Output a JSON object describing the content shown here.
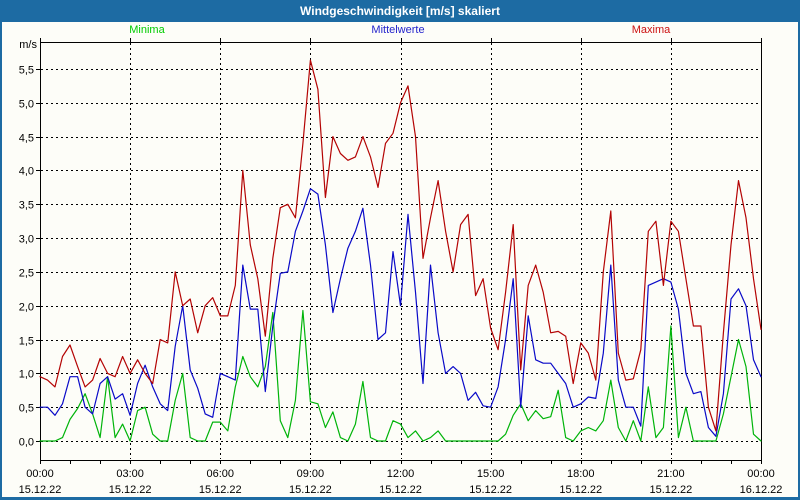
{
  "window": {
    "title": "Windgeschwindigkeit [m/s] skaliert",
    "titlebar_color": "#1d6ba3",
    "frame_color": "#1d6ba3",
    "background": "#fdfdf8"
  },
  "legend": [
    {
      "label": "Minima",
      "color": "#00cc00"
    },
    {
      "label": "Mittelwerte",
      "color": "#2323cc"
    },
    {
      "label": "Maxima",
      "color": "#cc1111"
    }
  ],
  "chart_data": {
    "type": "line",
    "title": "Windgeschwindigkeit [m/s] skaliert",
    "ylabel": "m/s",
    "xlabel": "",
    "ylim": [
      0,
      5.9
    ],
    "grid": "dashed black: horizontal every 0.5 m/s (0.0-5.5), vertical every 3 h",
    "legend_position": "top",
    "x_start": "15.12.22 00:00",
    "x_end": "16.12.22 00:00",
    "sample_step_hours": 0.25,
    "y_ticks": [
      {
        "value": 0.0,
        "label": "0,0"
      },
      {
        "value": 0.5,
        "label": "0,5"
      },
      {
        "value": 1.0,
        "label": "1,0"
      },
      {
        "value": 1.5,
        "label": "1,5"
      },
      {
        "value": 2.0,
        "label": "2,0"
      },
      {
        "value": 2.5,
        "label": "2,5"
      },
      {
        "value": 3.0,
        "label": "3,0"
      },
      {
        "value": 3.5,
        "label": "3,5"
      },
      {
        "value": 4.0,
        "label": "4,0"
      },
      {
        "value": 4.5,
        "label": "4,5"
      },
      {
        "value": 5.0,
        "label": "5,0"
      },
      {
        "value": 5.5,
        "label": "5,5"
      }
    ],
    "x_ticks": [
      {
        "hour": 0,
        "time": "00:00",
        "date": "15.12.22"
      },
      {
        "hour": 3,
        "time": "03:00",
        "date": "15.12.22"
      },
      {
        "hour": 6,
        "time": "06:00",
        "date": "15.12.22"
      },
      {
        "hour": 9,
        "time": "09:00",
        "date": "15.12.22"
      },
      {
        "hour": 12,
        "time": "12:00",
        "date": "15.12.22"
      },
      {
        "hour": 15,
        "time": "15:00",
        "date": "15.12.22"
      },
      {
        "hour": 18,
        "time": "18:00",
        "date": "15.12.22"
      },
      {
        "hour": 21,
        "time": "21:00",
        "date": "15.12.22"
      },
      {
        "hour": 24,
        "time": "00:00",
        "date": "16.12.22"
      }
    ],
    "series": [
      {
        "name": "Minima",
        "color": "#00b40a",
        "values": [
          0.0,
          0.0,
          0.0,
          0.05,
          0.32,
          0.48,
          0.7,
          0.4,
          0.05,
          0.95,
          0.05,
          0.25,
          0.0,
          0.45,
          0.5,
          0.1,
          0.0,
          0.0,
          0.6,
          1.0,
          0.05,
          0.0,
          0.0,
          0.28,
          0.28,
          0.15,
          0.8,
          1.25,
          0.95,
          0.8,
          1.1,
          1.9,
          0.3,
          0.05,
          0.6,
          1.93,
          0.58,
          0.55,
          0.2,
          0.43,
          0.05,
          0.0,
          0.25,
          0.88,
          0.05,
          0.0,
          0.0,
          0.3,
          0.25,
          0.05,
          0.15,
          0.0,
          0.05,
          0.15,
          0.0,
          0.0,
          0.0,
          0.0,
          0.0,
          0.0,
          0.0,
          0.0,
          0.1,
          0.38,
          0.55,
          0.3,
          0.45,
          0.33,
          0.36,
          0.75,
          0.05,
          0.0,
          0.15,
          0.2,
          0.15,
          0.3,
          0.9,
          0.2,
          0.0,
          0.3,
          0.0,
          0.8,
          0.05,
          0.2,
          1.7,
          0.05,
          0.5,
          0.0,
          0.0,
          0.0,
          0.0,
          0.4,
          0.95,
          1.5,
          1.1,
          0.1,
          0.0
        ]
      },
      {
        "name": "Mittelwerte",
        "color": "#0a0ac8",
        "values": [
          0.5,
          0.5,
          0.38,
          0.55,
          0.95,
          0.95,
          0.5,
          0.4,
          0.85,
          0.95,
          0.62,
          0.7,
          0.38,
          0.85,
          1.12,
          0.8,
          0.55,
          0.45,
          1.4,
          2.0,
          1.05,
          0.78,
          0.4,
          0.35,
          1.0,
          0.95,
          0.9,
          2.6,
          1.95,
          1.95,
          0.73,
          1.7,
          2.48,
          2.5,
          3.1,
          3.4,
          3.73,
          3.65,
          2.9,
          1.9,
          2.4,
          2.85,
          3.1,
          3.44,
          2.6,
          1.5,
          1.6,
          2.8,
          2.0,
          3.35,
          2.2,
          0.85,
          2.6,
          1.6,
          1.0,
          1.1,
          1.0,
          0.6,
          0.72,
          0.52,
          0.5,
          0.8,
          1.5,
          2.4,
          0.5,
          1.85,
          1.2,
          1.15,
          1.15,
          1.0,
          0.85,
          0.5,
          0.55,
          0.65,
          0.63,
          1.3,
          2.6,
          0.9,
          0.5,
          0.5,
          0.22,
          2.3,
          2.35,
          2.4,
          2.35,
          1.95,
          1.0,
          0.7,
          0.73,
          0.2,
          0.07,
          0.7,
          2.1,
          2.25,
          2.0,
          1.2,
          0.95
        ]
      },
      {
        "name": "Maxima",
        "color": "#b40404",
        "values": [
          0.95,
          0.9,
          0.8,
          1.25,
          1.42,
          1.1,
          0.8,
          0.9,
          1.22,
          1.0,
          0.95,
          1.25,
          1.0,
          1.2,
          1.0,
          0.85,
          1.5,
          1.45,
          2.5,
          2.0,
          2.1,
          1.6,
          2.0,
          2.12,
          1.85,
          1.85,
          2.3,
          4.0,
          2.9,
          2.4,
          1.55,
          2.7,
          3.45,
          3.5,
          3.3,
          4.4,
          5.63,
          5.2,
          3.6,
          4.5,
          4.25,
          4.15,
          4.2,
          4.5,
          4.2,
          3.75,
          4.4,
          4.55,
          5.0,
          5.25,
          4.5,
          2.7,
          3.3,
          3.85,
          3.1,
          2.5,
          3.2,
          3.35,
          2.15,
          2.4,
          1.67,
          1.35,
          2.2,
          3.2,
          1.05,
          2.3,
          2.6,
          2.2,
          1.6,
          1.62,
          1.55,
          0.85,
          1.45,
          1.3,
          0.9,
          2.5,
          3.4,
          1.3,
          0.9,
          0.92,
          1.35,
          3.1,
          3.25,
          2.3,
          3.25,
          3.1,
          2.4,
          1.7,
          1.7,
          0.5,
          0.15,
          1.6,
          2.9,
          3.85,
          3.3,
          2.4,
          1.65
        ]
      }
    ]
  }
}
